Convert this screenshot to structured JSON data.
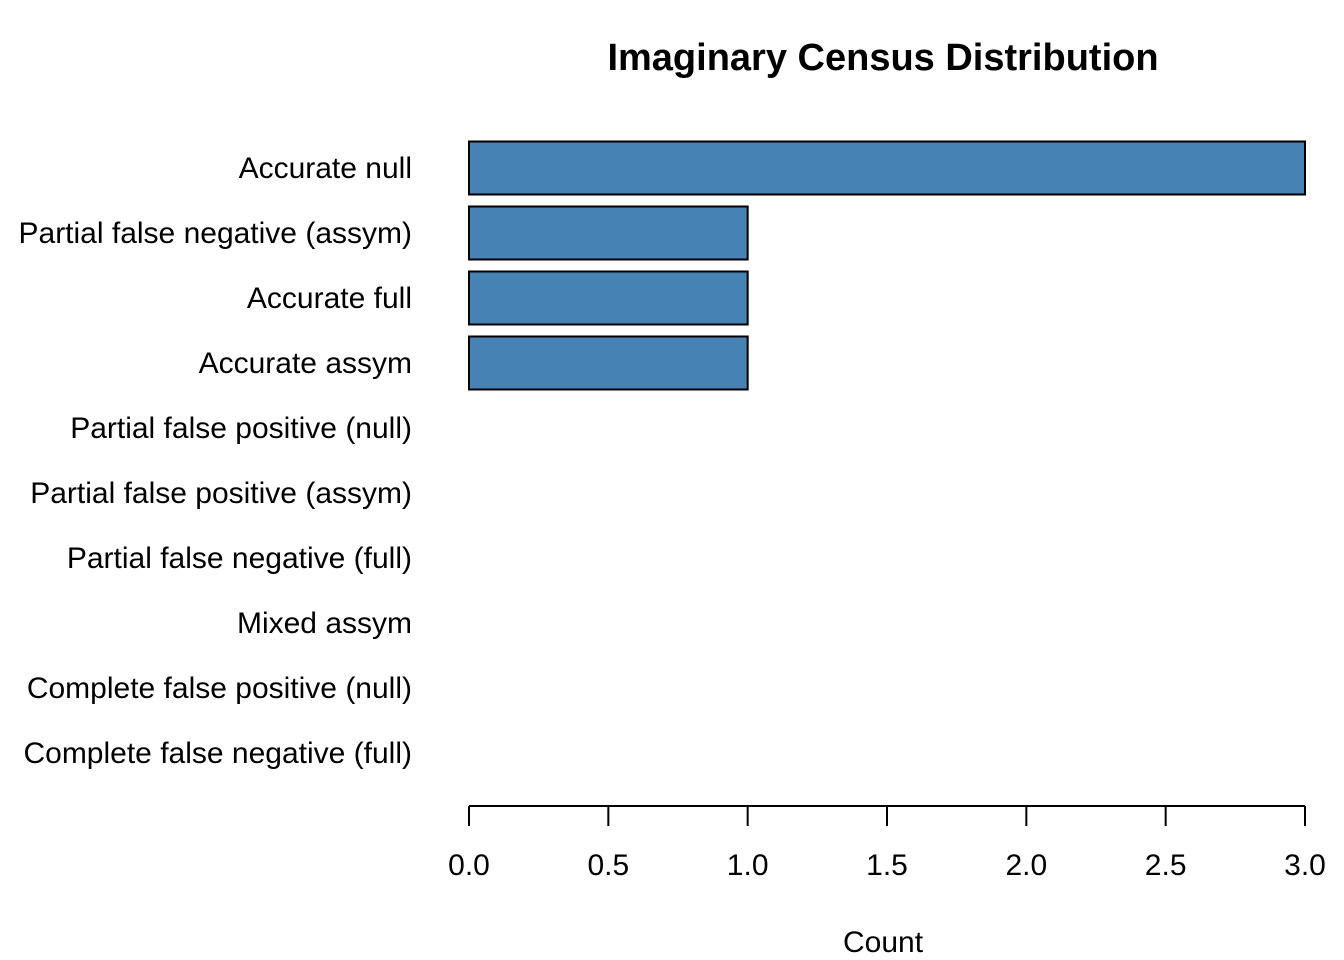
{
  "chart_data": {
    "type": "bar",
    "orientation": "horizontal",
    "title": "Imaginary Census Distribution",
    "xlabel": "Count",
    "ylabel": "",
    "categories": [
      "Accurate null",
      "Partial false negative (assym)",
      "Accurate full",
      "Accurate assym",
      "Partial false positive (null)",
      "Partial false positive (assym)",
      "Partial false negative (full)",
      "Mixed assym",
      "Complete false positive (null)",
      "Complete false negative (full)"
    ],
    "values": [
      3,
      1,
      1,
      1,
      0,
      0,
      0,
      0,
      0,
      0
    ],
    "xlim": [
      0,
      3
    ],
    "x_ticks": [
      "0.0",
      "0.5",
      "1.0",
      "1.5",
      "2.0",
      "2.5",
      "3.0"
    ],
    "bar_color": "#4682b4",
    "grid": false,
    "legend": "none"
  }
}
